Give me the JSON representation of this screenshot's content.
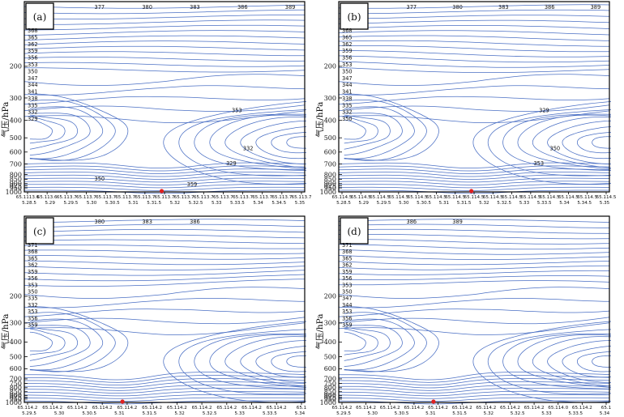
{
  "chart_data": [
    {
      "panel": "(a)",
      "type": "contour",
      "ylabel": "气压/hPa",
      "y_ticks": [
        200,
        300,
        400,
        500,
        600,
        700,
        800,
        850,
        900,
        925,
        950,
        1000
      ],
      "x_tick_labels_top": [
        "65.1113.6",
        "65.113.6",
        "65.113.7",
        "65.113.7",
        "65.113.7",
        "65.113.7",
        "65.113.7",
        "65.113.7",
        "65.113.7",
        "65.113.7",
        "65.113.7",
        "65.113.7",
        "65.113.7",
        "65.113.7",
        "65.113.7"
      ],
      "x_tick_labels_bottom": [
        "5.28.5",
        "5.29",
        "5.29.5",
        "5.30",
        "5.30.5",
        "5.31",
        "5.31.5",
        "5.32",
        "5.32.5",
        "5.33",
        "5.33.5",
        "5.34",
        "5.34.5",
        "5.35"
      ],
      "contour_labels": [
        "377",
        "380",
        "383",
        "386",
        "389",
        "368",
        "365",
        "362",
        "359",
        "356",
        "353",
        "350",
        "347",
        "344",
        "341",
        "338",
        "335",
        "332",
        "329",
        "353",
        "332",
        "329",
        "350",
        "359"
      ],
      "marker": true
    },
    {
      "panel": "(b)",
      "type": "contour",
      "ylabel": "气压/hPa",
      "y_ticks": [
        200,
        300,
        400,
        500,
        600,
        700,
        800,
        850,
        900,
        925,
        950,
        1000
      ],
      "x_tick_labels_top": [
        "65.114.5",
        "65.114.5",
        "65.114.5",
        "65.114.5",
        "65.114.5",
        "65.114.5",
        "65.114.5",
        "65.114.5",
        "65.114.5",
        "65.114.5",
        "65.114.5",
        "65.114.5",
        "65.114.5",
        "65.114.5",
        "65.114.5"
      ],
      "x_tick_labels_bottom": [
        "5.28.5",
        "5.29",
        "5.29.5",
        "5.30",
        "5.30.5",
        "5.31",
        "5.31.5",
        "5.32",
        "5.32.5",
        "5.33",
        "5.33.5",
        "5.34",
        "5.34.5",
        "5.35"
      ],
      "contour_labels": [
        "377",
        "380",
        "383",
        "386",
        "389",
        "368",
        "365",
        "362",
        "359",
        "356",
        "353",
        "350",
        "347",
        "344",
        "341",
        "338",
        "335",
        "332",
        "350",
        "329",
        "350",
        "353"
      ],
      "marker": true
    },
    {
      "panel": "(c)",
      "type": "contour",
      "ylabel": "气压/hPa",
      "y_ticks": [
        200,
        300,
        400,
        500,
        600,
        700,
        750,
        800,
        850,
        900,
        925,
        950,
        1000
      ],
      "x_tick_labels_top": [
        "65.114.2",
        "65.114.2",
        "65.114.2",
        "65.114.2",
        "65.114.2",
        "65.114.2",
        "65.114.2",
        "65.114.2",
        "65.114.2",
        "65.114.2",
        "65.114.2",
        "65.1"
      ],
      "x_tick_labels_bottom": [
        "5.29.5",
        "5.30",
        "5.30.5",
        "5.31",
        "5.31.5",
        "5.32",
        "5.32.5",
        "5.33",
        "5.33.5",
        "5.34"
      ],
      "contour_labels": [
        "380",
        "383",
        "386",
        "371",
        "368",
        "365",
        "362",
        "359",
        "356",
        "353",
        "350",
        "335",
        "332",
        "353",
        "356",
        "359"
      ],
      "marker": true
    },
    {
      "panel": "(d)",
      "type": "contour",
      "ylabel": "气压/hPa",
      "y_ticks": [
        200,
        300,
        400,
        500,
        600,
        700,
        750,
        800,
        850,
        900,
        925,
        950,
        1000
      ],
      "x_tick_labels_top": [
        "65.114.2",
        "65.114.2",
        "65.114.2",
        "65.114.2",
        "65.114.2",
        "65.114.2",
        "65.114.2",
        "65.114.2",
        "65.114.2",
        "65.114.0",
        "65.114.2",
        "65.1"
      ],
      "x_tick_labels_bottom": [
        "5.29.5",
        "5.30",
        "5.30.5",
        "5.31",
        "5.31.5",
        "5.32",
        "5.32.5",
        "5.33",
        "5.33.5",
        "5.34"
      ],
      "contour_labels": [
        "386",
        "389",
        "371",
        "368",
        "365",
        "362",
        "359",
        "356",
        "353",
        "350",
        "347",
        "344",
        "353",
        "356",
        "359"
      ],
      "marker": true
    }
  ],
  "colors": {
    "contour": "#4a6fc4",
    "marker": "#e02020",
    "axes": "#000000"
  }
}
